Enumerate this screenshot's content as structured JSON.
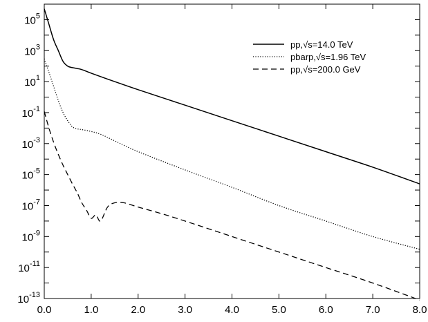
{
  "chart_data": {
    "type": "line",
    "title": "",
    "xlabel": "",
    "ylabel": "",
    "xlim": [
      0,
      8
    ],
    "ylim": [
      1e-13,
      1000000.0
    ],
    "yscale": "log",
    "grid": false,
    "legend_position": "top-right",
    "x_ticks": [
      "0.0",
      "1.0",
      "2.0",
      "3.0",
      "4.0",
      "5.0",
      "6.0",
      "7.0",
      "8.0"
    ],
    "y_ticks": [
      {
        "value": 1e-13,
        "base": "10",
        "exp": "-13"
      },
      {
        "value": 1e-11,
        "base": "10",
        "exp": "-11"
      },
      {
        "value": 1e-09,
        "base": "10",
        "exp": "-9"
      },
      {
        "value": 1e-07,
        "base": "10",
        "exp": "-7"
      },
      {
        "value": 1e-05,
        "base": "10",
        "exp": "-5"
      },
      {
        "value": 0.001,
        "base": "10",
        "exp": "-3"
      },
      {
        "value": 0.1,
        "base": "10",
        "exp": "-1"
      },
      {
        "value": 10.0,
        "base": "10",
        "exp": "1"
      },
      {
        "value": 1000.0,
        "base": "10",
        "exp": "3"
      },
      {
        "value": 100000.0,
        "base": "10",
        "exp": "5"
      }
    ],
    "series": [
      {
        "name": "pp,√s=14.0 TeV",
        "style": "solid",
        "x": [
          0.0,
          0.1,
          0.2,
          0.3,
          0.4,
          0.5,
          0.6,
          0.7,
          0.8,
          1.0,
          1.5,
          2.0,
          3.0,
          4.0,
          5.0,
          6.0,
          7.0,
          8.0
        ],
        "y": [
          500000.0,
          50000.0,
          5000.0,
          1000.0,
          200.0,
          100,
          80,
          70,
          60,
          35,
          10,
          3,
          0.3,
          0.03,
          0.003,
          0.0003,
          3e-05,
          2.5e-06
        ]
      },
      {
        "name": "pbarp,√s=1.96 TeV",
        "style": "dotted",
        "x": [
          0.0,
          0.1,
          0.2,
          0.3,
          0.4,
          0.5,
          0.6,
          0.7,
          0.8,
          1.0,
          1.2,
          1.5,
          2.0,
          3.0,
          4.0,
          5.0,
          6.0,
          7.0,
          8.0
        ],
        "y": [
          300,
          40,
          5,
          0.6,
          0.1,
          0.03,
          0.012,
          0.009,
          0.008,
          0.006,
          0.004,
          0.0015,
          0.0003,
          2e-05,
          1.5e-06,
          1e-07,
          1e-08,
          1e-09,
          1.5e-10
        ]
      },
      {
        "name": "pp,√s=200.0 GeV",
        "style": "dashed",
        "x": [
          0.0,
          0.1,
          0.2,
          0.3,
          0.4,
          0.5,
          0.6,
          0.7,
          0.8,
          0.9,
          1.0,
          1.1,
          1.2,
          1.35,
          1.5,
          1.7,
          2.0,
          2.5,
          3.0,
          4.0,
          5.0,
          6.0,
          7.0,
          8.0
        ],
        "y": [
          0.12,
          0.01,
          0.0012,
          0.0002,
          4e-05,
          1e-05,
          2.5e-06,
          7e-07,
          1.5e-07,
          5e-08,
          1.5e-08,
          2.5e-08,
          1e-08,
          8e-08,
          1.5e-07,
          1.5e-07,
          8e-08,
          3e-08,
          1e-08,
          1e-09,
          1e-10,
          1e-11,
          1e-12,
          8e-14
        ]
      }
    ]
  }
}
